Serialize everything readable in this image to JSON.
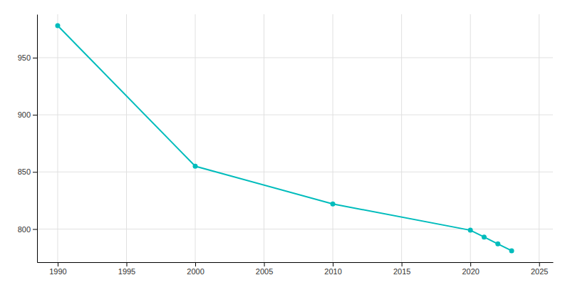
{
  "chart_data": {
    "type": "line",
    "x": [
      1990,
      2000,
      2010,
      2020,
      2021,
      2022,
      2023
    ],
    "values": [
      978,
      855,
      822,
      799,
      793,
      787,
      781
    ],
    "color": "#00BCBC",
    "marker": "circle",
    "xlim": [
      1988.5,
      2026
    ],
    "ylim": [
      771,
      988
    ],
    "xticks": [
      1990,
      1995,
      2000,
      2005,
      2010,
      2015,
      2020,
      2025
    ],
    "yticks": [
      800,
      850,
      900,
      950
    ],
    "grid": true
  }
}
